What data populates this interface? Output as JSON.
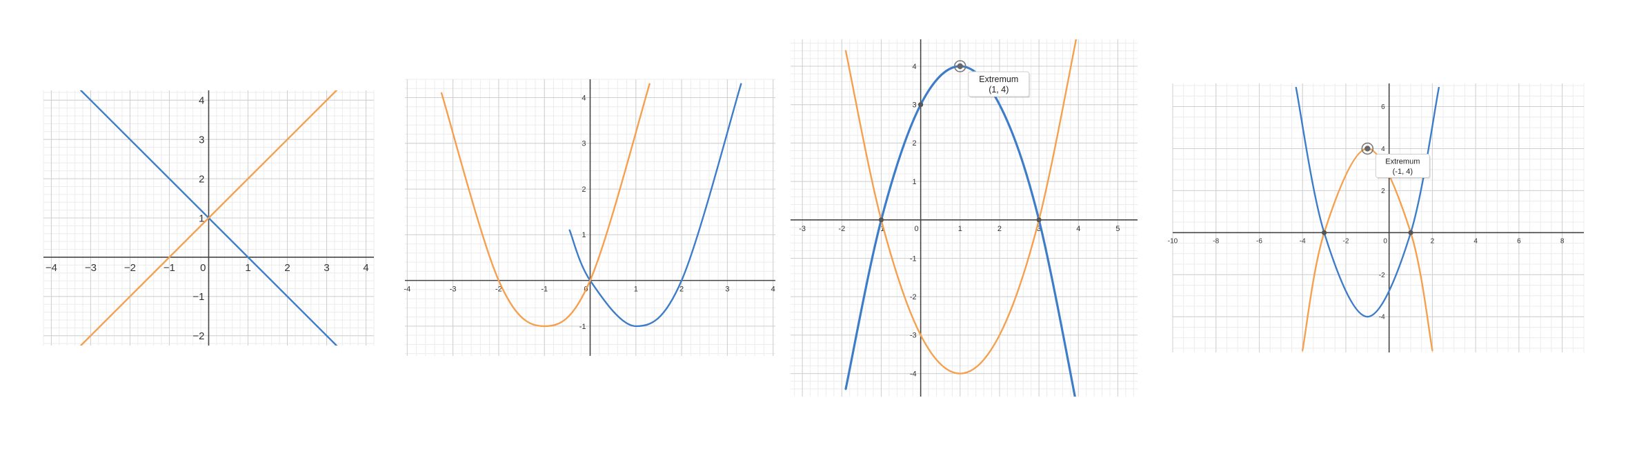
{
  "chart_data": [
    {
      "type": "line",
      "xlim": [
        -4.2,
        4.2
      ],
      "ylim": [
        -2.25,
        4.25
      ],
      "grid": true,
      "minor_grid": true,
      "x_ticks": [
        "−4",
        "−3",
        "−2",
        "−1",
        "0",
        "1",
        "2",
        "3",
        "4"
      ],
      "y_ticks": [
        "−2",
        "−1",
        "1",
        "2",
        "3",
        "4"
      ],
      "series": [
        {
          "color": "#3d7cc9",
          "formula": "1 - x",
          "x": [
            -3.25,
            3.25
          ],
          "y": [
            4.25,
            -2.25
          ],
          "points": []
        },
        {
          "color": "#f5a04e",
          "formula": "x + 1",
          "x": [
            -3.25,
            3.25
          ],
          "y": [
            -2.25,
            4.25
          ],
          "points": []
        }
      ],
      "marked_points": [],
      "annotation": null
    },
    {
      "type": "line",
      "xlim": [
        -4.05,
        4.05
      ],
      "ylim": [
        -1.65,
        4.4
      ],
      "grid": true,
      "minor_grid": true,
      "x_ticks": [
        "-4",
        "-3",
        "-2",
        "-1",
        "0",
        "1",
        "2",
        "3",
        "4"
      ],
      "y_ticks": [
        "-1",
        "1",
        "2",
        "3",
        "4"
      ],
      "series": [
        {
          "color": "#3d7cc9",
          "formula": "(x - 1)^2 - 1",
          "x": [
            -0.45,
            0,
            1,
            2,
            3.3
          ],
          "y": [
            1.1,
            0,
            -1,
            0,
            4.3
          ],
          "points": []
        },
        {
          "color": "#f5a04e",
          "formula": "(x + 1)^2 - 1",
          "x": [
            -3.25,
            -2,
            -1,
            0,
            1.3
          ],
          "y": [
            4.1,
            0,
            -1,
            0,
            4.3
          ],
          "points": []
        }
      ],
      "marked_points": [],
      "annotation": null
    },
    {
      "type": "line",
      "xlim": [
        -3.3,
        5.5
      ],
      "ylim": [
        -4.6,
        4.7
      ],
      "grid": true,
      "minor_grid": true,
      "x_ticks": [
        "-3",
        "-2",
        "-1",
        "0",
        "1",
        "2",
        "3",
        "4",
        "5"
      ],
      "y_ticks": [
        "-4",
        "-3",
        "-2",
        "-1",
        "1",
        "2",
        "3",
        "4"
      ],
      "series": [
        {
          "color": "#3d7cc9",
          "formula": "-(x - 1)^2 + 4",
          "x": [
            -1.9,
            -1,
            0,
            1,
            2,
            3,
            4.1
          ],
          "y": [
            -4.4,
            0,
            3,
            4,
            3,
            0,
            -5.6
          ],
          "points": []
        },
        {
          "color": "#f5a04e",
          "formula": "(x - 1)^2 - 4",
          "x": [
            -1.9,
            -1,
            0,
            1,
            2,
            3,
            4.0
          ],
          "y": [
            4.4,
            0,
            -3,
            -4,
            -3,
            0,
            5.0
          ],
          "points": []
        }
      ],
      "marked_points": [
        {
          "x": -1,
          "y": 0
        },
        {
          "x": 0,
          "y": 3
        },
        {
          "x": 3,
          "y": 0
        }
      ],
      "annotation": {
        "label": "Extremum",
        "value": "(1, 4)",
        "x": 1,
        "y": 4
      }
    },
    {
      "type": "line",
      "xlim": [
        -10,
        9
      ],
      "ylim": [
        -5.7,
        7.1
      ],
      "grid": true,
      "minor_grid": true,
      "x_ticks": [
        "-10",
        "-8",
        "-6",
        "-4",
        "-2",
        "0",
        "2",
        "4",
        "6",
        "8"
      ],
      "y_ticks": [
        "-4",
        "-2",
        "2",
        "4",
        "6"
      ],
      "series": [
        {
          "color": "#3d7cc9",
          "formula": "(x + 1)^2 - 4",
          "x": [
            -4.3,
            -3,
            -1,
            1,
            2.3
          ],
          "y": [
            6.9,
            0,
            -4,
            0,
            6.9
          ],
          "points": []
        },
        {
          "color": "#f5a04e",
          "formula": "-(x + 1)^2 + 4",
          "x": [
            -4.0,
            -3,
            -1,
            1,
            2.0
          ],
          "y": [
            -5.6,
            0,
            4,
            0,
            -5.6
          ],
          "points": []
        }
      ],
      "marked_points": [
        {
          "x": -3,
          "y": 0
        },
        {
          "x": 1,
          "y": 0
        }
      ],
      "annotation": {
        "label": "Extremum",
        "value": "(-1, 4)",
        "x": -1,
        "y": 4
      }
    }
  ]
}
